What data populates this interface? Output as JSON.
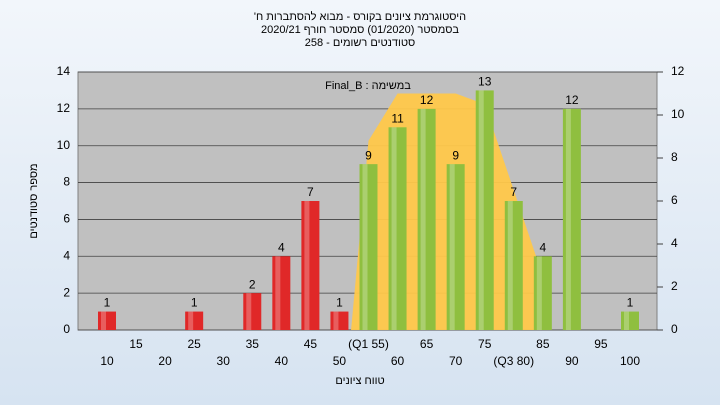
{
  "chart_data": {
    "type": "bar",
    "title_lines": [
      "היסטוגרמת ציונים בקורס - מבוא להסתברות ח'",
      "בסמסטר  (01/2020)  סמסטר חורף 2020/21",
      "סטודנטים רשומים - 258"
    ],
    "annotation": "במשימה : Final_B",
    "ylabel": "מספר סטודנטים",
    "xlabel": "טווח ציונים",
    "categories": [
      "10",
      "15",
      "20",
      "25",
      "30",
      "35",
      "40",
      "45",
      "50",
      "(Q1 55)",
      "60",
      "65",
      "70",
      "75",
      "(Q3 80)",
      "85",
      "90",
      "95",
      "100"
    ],
    "values": [
      1,
      0,
      0,
      1,
      0,
      2,
      4,
      7,
      1,
      9,
      11,
      12,
      9,
      13,
      7,
      4,
      12,
      0,
      1
    ],
    "colors": [
      "#e02828",
      "#e02828",
      "#e02828",
      "#e02828",
      "#e02828",
      "#e02828",
      "#e02828",
      "#e02828",
      "#e02828",
      "#8fbf3f",
      "#8fbf3f",
      "#8fbf3f",
      "#8fbf3f",
      "#8fbf3f",
      "#8fbf3f",
      "#8fbf3f",
      "#8fbf3f",
      "#8fbf3f",
      "#8fbf3f"
    ],
    "ylim": [
      0,
      14
    ],
    "yticks": [
      0,
      2,
      4,
      6,
      8,
      10,
      12,
      14
    ],
    "y2lim": [
      0,
      12
    ],
    "y2ticks": [
      0,
      2,
      4,
      6,
      8,
      10,
      12
    ],
    "band": {
      "color": "#ffc84a",
      "axis": "y2",
      "x": [
        52,
        55,
        60,
        70,
        75,
        85,
        85
      ],
      "values": [
        0,
        8.8,
        11,
        11,
        10.5,
        2.5,
        0
      ]
    },
    "grid": true
  }
}
